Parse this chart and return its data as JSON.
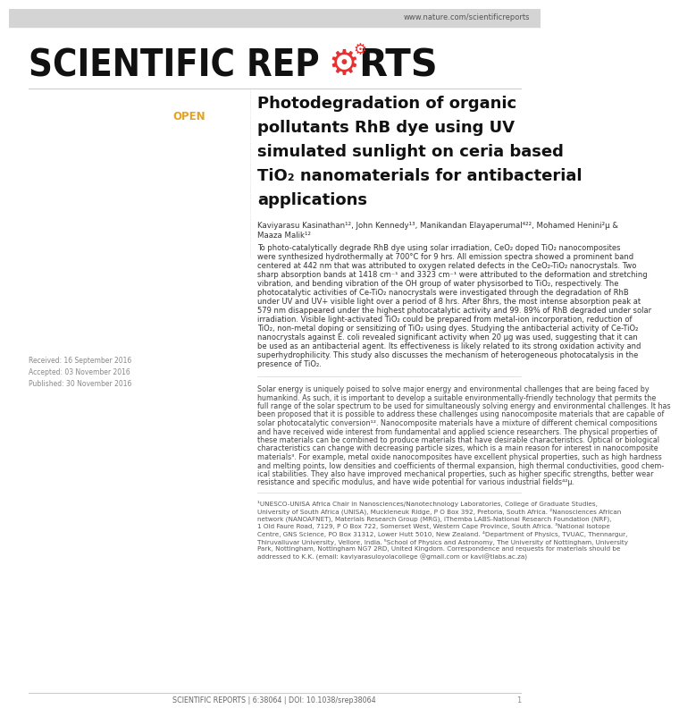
{
  "bg_top_color": "#d4d4d4",
  "bg_main_color": "#ffffff",
  "url_text": "www.nature.com/scientificreports",
  "open_label": "OPEN",
  "open_color": "#e8a020",
  "received_text": "Received: 16 September 2016",
  "accepted_text": "Accepted: 03 November 2016",
  "published_text": "Published: 30 November 2016",
  "doi_text": "SCIENTIFIC REPORTS | 6:38064 | DOI: 10.1038/srep38064",
  "divider_color": "#cccccc",
  "gear_color": "#e83030",
  "text_color": "#111111",
  "small_text_color": "#888888",
  "title_lines": [
    "Photodegradation of organic",
    "pollutants RhB dye using UV",
    "simulated sunlight on ceria based",
    "TiO₂ nanomaterials for antibacterial",
    "applications"
  ],
  "authors_line1": "Kaviyarasu Kasinathan¹², John Kennedy¹³, Manikandan Elayaperumal⁴²², Mohamed Henini²µ &",
  "authors_line2": "Maaza Malik¹²",
  "abstract_lines": [
    "To photo-catalytically degrade RhB dye using solar irradiation, CeO₂ doped TiO₂ nanocomposites",
    "were synthesized hydrothermally at 700°C for 9 hrs. All emission spectra showed a prominent band",
    "centered at 442 nm that was attributed to oxygen related defects in the CeO₂-TiO₂ nanocrystals. Two",
    "sharp absorption bands at 1418 cm⁻¹ and 3323 cm⁻¹ were attributed to the deformation and stretching",
    "vibration, and bending vibration of the OH group of water physisorbed to TiO₂, respectively. The",
    "photocatalytic activities of Ce-TiO₂ nanocrystals were investigated through the degradation of RhB",
    "under UV and UV+ visible light over a period of 8 hrs. After 8hrs, the most intense absorption peak at",
    "579 nm disappeared under the highest photocatalytic activity and 99. 89% of RhB degraded under solar",
    "irradiation. Visible light-activated TiO₂ could be prepared from metal-ion incorporation, reduction of",
    "TiO₂, non-metal doping or sensitizing of TiO₂ using dyes. Studying the antibacterial activity of Ce-TiO₂",
    "nanocrystals against E. coli revealed significant activity when 20 μg was used, suggesting that it can",
    "be used as an antibacterial agent. Its effectiveness is likely related to its strong oxidation activity and",
    "superhydrophilicity. This study also discusses the mechanism of heterogeneous photocatalysis in the",
    "presence of TiO₂."
  ],
  "body_lines": [
    "Solar energy is uniquely poised to solve major energy and environmental challenges that are being faced by",
    "humankind. As such, it is important to develop a suitable environmentally-friendly technology that permits the",
    "full range of the solar spectrum to be used for simultaneously solving energy and environmental challenges. It has",
    "been proposed that it is possible to address these challenges using nanocomposite materials that are capable of",
    "solar photocatalytic conversion¹². Nanocomposite materials have a mixture of different chemical compositions",
    "and have received wide interest from fundamental and applied science researchers. The physical properties of",
    "these materials can be combined to produce materials that have desirable characteristics. Optical or biological",
    "characteristics can change with decreasing particle sizes, which is a main reason for interest in nanocomposite",
    "materials³. For example, metal oxide nanocomposites have excellent physical properties, such as high hardness",
    "and melting points, low densities and coefficients of thermal expansion, high thermal conductivities, good chem-",
    "ical stabilities. They also have improved mechanical properties, such as higher specific strengths, better wear",
    "resistance and specific modulus, and have wide potential for various industrial fields⁴²µ."
  ],
  "footnote_lines": [
    "¹UNESCO-UNISA Africa Chair in Nanosciences/Nanotechnology Laboratories, College of Graduate Studies,",
    "University of South Africa (UNISA), Muckleneuk Ridge, P O Box 392, Pretoria, South Africa. ²Nanosciences African",
    "network (NANOAFNET), Materials Research Group (MRG), iThemba LABS-National Research Foundation (NRF),",
    "1 Old Faure Road, 7129, P O Box 722, Somerset West, Western Cape Province, South Africa. ³National Isotope",
    "Centre, GNS Science, PO Box 31312, Lower Hutt 5010, New Zealand. ⁴Department of Physics, TVUAC, Thennargur,",
    "Thiruvalluvar University, Vellore, India. ⁵School of Physics and Astronomy, The University of Nottingham, University",
    "Park, Nottingham, Nottingham NG7 2RD, United Kingdom. Correspondence and requests for materials should be",
    "addressed to K.K. (email: kaviyarasuloyolacollege @gmail.com or kavi@tlabs.ac.za)"
  ]
}
